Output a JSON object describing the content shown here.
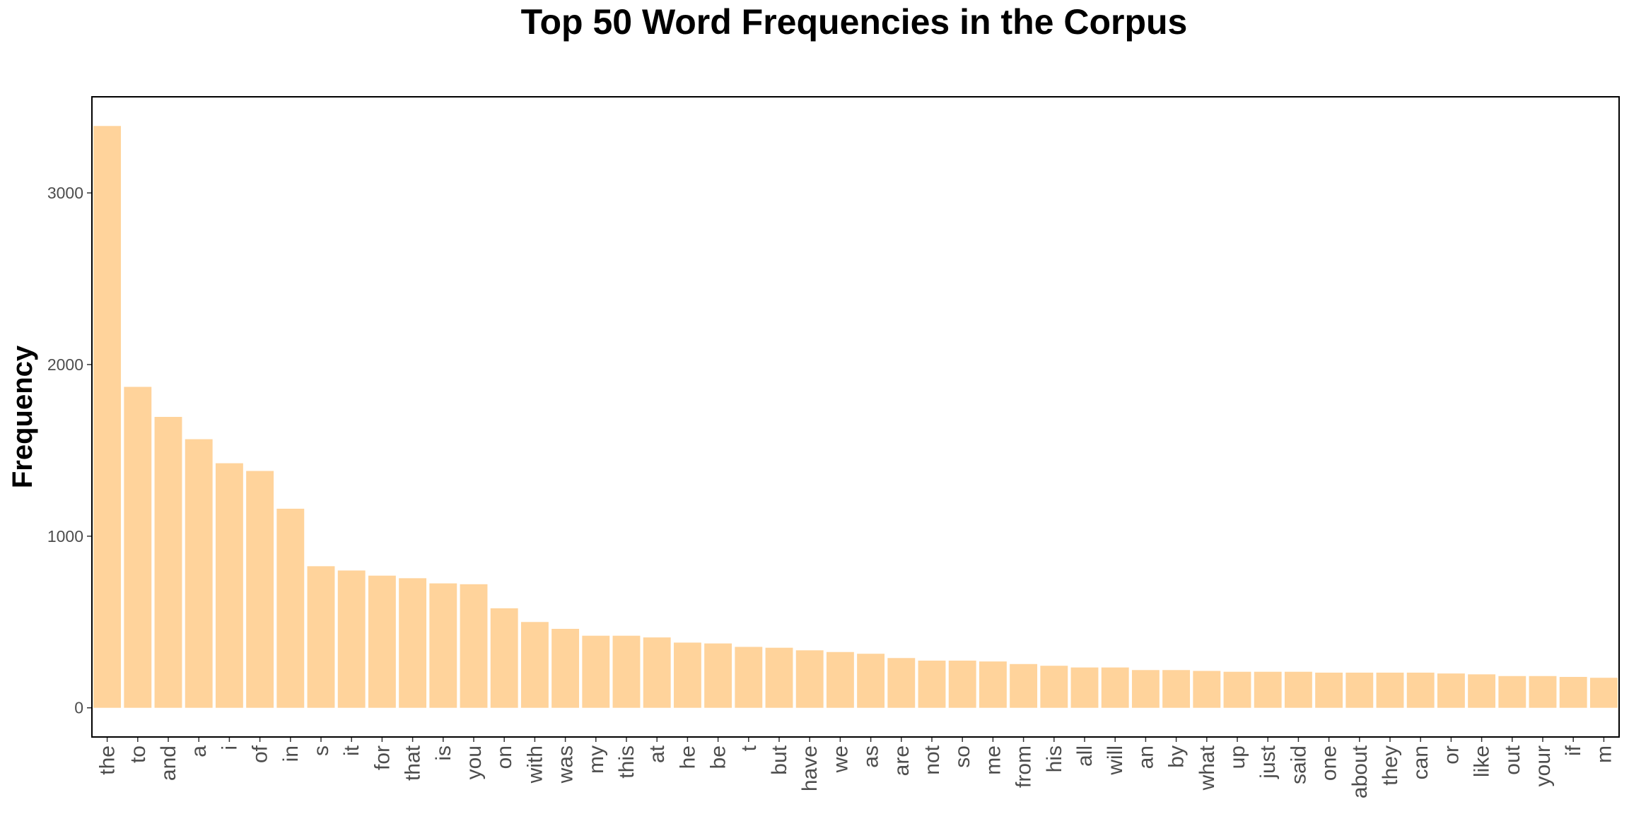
{
  "chart_data": {
    "type": "bar",
    "title": "Top 50 Word Frequencies in the Corpus",
    "xlabel": "",
    "ylabel": "Frequency",
    "ylim": [
      -170,
      3560
    ],
    "yticks": [
      0,
      1000,
      2000,
      3000
    ],
    "grid": false,
    "bar_color": "#FFD39B",
    "categories": [
      "the",
      "to",
      "and",
      "a",
      "i",
      "of",
      "in",
      "s",
      "it",
      "for",
      "that",
      "is",
      "you",
      "on",
      "with",
      "was",
      "my",
      "this",
      "at",
      "he",
      "be",
      "t",
      "but",
      "have",
      "we",
      "as",
      "are",
      "not",
      "so",
      "me",
      "from",
      "his",
      "all",
      "will",
      "an",
      "by",
      "what",
      "up",
      "just",
      "said",
      "one",
      "about",
      "they",
      "can",
      "or",
      "like",
      "out",
      "your",
      "if",
      "m"
    ],
    "values": [
      3390,
      1870,
      1695,
      1565,
      1425,
      1380,
      1160,
      825,
      800,
      770,
      755,
      725,
      720,
      580,
      500,
      460,
      420,
      420,
      410,
      380,
      375,
      355,
      350,
      335,
      325,
      315,
      290,
      275,
      275,
      270,
      255,
      245,
      235,
      235,
      220,
      220,
      215,
      210,
      210,
      210,
      205,
      205,
      205,
      205,
      200,
      195,
      185,
      185,
      180,
      175
    ]
  }
}
